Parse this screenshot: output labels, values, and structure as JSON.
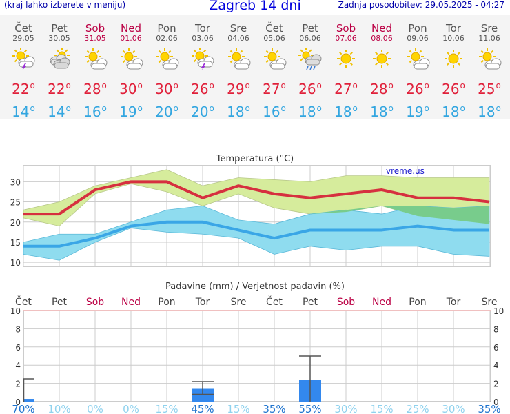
{
  "header": {
    "left_note": "(kraj lahko izberete v meniju)",
    "title": "Zagreb 14 dni",
    "updated": "Zadnja posodobitev: 29.05.2025 - 04:27"
  },
  "days": [
    {
      "name": "Čet",
      "date": "29.05",
      "weekend": false,
      "icon": "sun-cloud-thunder-icon",
      "high": "22",
      "low": "14",
      "precip_prob": "70%"
    },
    {
      "name": "Pet",
      "date": "30.05",
      "weekend": false,
      "icon": "cloudy-sun-icon",
      "high": "22",
      "low": "14",
      "precip_prob": "10%"
    },
    {
      "name": "Sob",
      "date": "31.05",
      "weekend": true,
      "icon": "sun-cloud-icon",
      "high": "28",
      "low": "16",
      "precip_prob": "0%"
    },
    {
      "name": "Ned",
      "date": "01.06",
      "weekend": true,
      "icon": "sun-cloud-icon",
      "high": "30",
      "low": "19",
      "precip_prob": "0%"
    },
    {
      "name": "Pon",
      "date": "02.06",
      "weekend": false,
      "icon": "sun-cloud-icon",
      "high": "30",
      "low": "20",
      "precip_prob": "15%"
    },
    {
      "name": "Tor",
      "date": "03.06",
      "weekend": false,
      "icon": "sun-cloud-thunder-icon",
      "high": "26",
      "low": "20",
      "precip_prob": "45%"
    },
    {
      "name": "Sre",
      "date": "04.06",
      "weekend": false,
      "icon": "sun-cloud-icon",
      "high": "29",
      "low": "18",
      "precip_prob": "15%"
    },
    {
      "name": "Čet",
      "date": "05.06",
      "weekend": false,
      "icon": "sun-cloud-icon",
      "high": "27",
      "low": "16",
      "precip_prob": "35%"
    },
    {
      "name": "Pet",
      "date": "06.06",
      "weekend": false,
      "icon": "sun-cloud-rain-icon",
      "high": "26",
      "low": "18",
      "precip_prob": "55%"
    },
    {
      "name": "Sob",
      "date": "07.06",
      "weekend": true,
      "icon": "sun-icon",
      "high": "27",
      "low": "18",
      "precip_prob": "30%"
    },
    {
      "name": "Ned",
      "date": "08.06",
      "weekend": true,
      "icon": "sun-icon",
      "high": "28",
      "low": "18",
      "precip_prob": "15%"
    },
    {
      "name": "Pon",
      "date": "09.06",
      "weekend": false,
      "icon": "sun-cloud-icon",
      "high": "26",
      "low": "19",
      "precip_prob": "25%"
    },
    {
      "name": "Tor",
      "date": "10.06",
      "weekend": false,
      "icon": "sun-icon",
      "high": "26",
      "low": "18",
      "precip_prob": "30%"
    },
    {
      "name": "Sre",
      "date": "11.06",
      "weekend": false,
      "icon": "sun-cloud-icon",
      "high": "25",
      "low": "18",
      "precip_prob": "35%"
    }
  ],
  "colors": {
    "high": "#e0203a",
    "low": "#33a6e0",
    "weekend": "#bb0044",
    "high_band": "#d6ec9c",
    "low_band": "#8fdcef",
    "overlap": "#78cc8c",
    "bar": "#3388ee"
  },
  "chart_data": [
    {
      "type": "line",
      "title": "Temperatura (°C)",
      "watermark": "vreme.us",
      "ylim": [
        9,
        34
      ],
      "yticks": [
        10,
        15,
        20,
        25,
        30
      ],
      "grid": true,
      "series": [
        {
          "values": [
            22,
            22,
            28,
            30,
            30,
            26,
            29,
            27,
            26,
            27,
            28,
            26,
            26,
            25
          ]
        },
        {
          "values": [
            14,
            14,
            16,
            19,
            20,
            20,
            18,
            16,
            18,
            18,
            18,
            19,
            18,
            18
          ]
        }
      ],
      "high_band": {
        "upper": [
          23,
          25,
          29,
          31,
          33,
          29,
          31,
          30.5,
          30,
          31.5,
          31.5,
          31,
          31,
          31
        ],
        "lower": [
          21,
          19,
          27,
          29.5,
          27.5,
          24,
          27,
          23.5,
          22,
          22.5,
          24,
          21.5,
          20.5,
          19.5
        ]
      },
      "low_band": {
        "upper": [
          15,
          17,
          17,
          20,
          23,
          24,
          20.5,
          19.5,
          22,
          23,
          22,
          24,
          23.5,
          24
        ],
        "lower": [
          12,
          10.5,
          15,
          18.5,
          17.5,
          17,
          16,
          12,
          14,
          13,
          14,
          14,
          12,
          11.5
        ]
      }
    },
    {
      "type": "bar",
      "title": "Padavine (mm) / Verjetnost padavin (%)",
      "ylim": [
        0,
        10
      ],
      "yticks": [
        0,
        2,
        4,
        6,
        8,
        10
      ],
      "grid": true,
      "values": [
        0.3,
        0,
        0,
        0,
        0,
        1.4,
        0,
        0,
        2.4,
        0,
        0,
        0,
        0,
        0
      ],
      "error_max": [
        2.5,
        0,
        0,
        0,
        0,
        2.2,
        0,
        0,
        5,
        0,
        0,
        0,
        0,
        0
      ],
      "error_min": [
        0,
        0,
        0,
        0,
        0,
        0.8,
        0,
        0,
        0,
        0,
        0,
        0,
        0,
        0
      ]
    }
  ]
}
